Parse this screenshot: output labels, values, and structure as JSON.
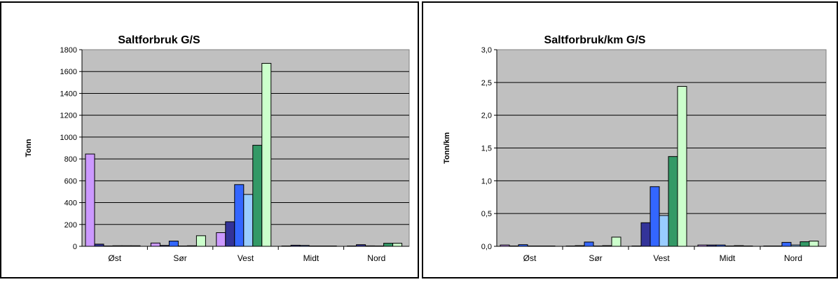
{
  "chart_data": [
    {
      "type": "bar",
      "title": "Saltforbruk G/S",
      "xlabel": "",
      "ylabel": "Tonn",
      "ylim": [
        0,
        1800
      ],
      "ytick_labels": [
        "0",
        "200",
        "400",
        "600",
        "800",
        "1000",
        "1200",
        "1400",
        "1600",
        "1800"
      ],
      "categories": [
        "Øst",
        "Sør",
        "Vest",
        "Midt",
        "Nord"
      ],
      "series_colors": [
        "#CC99FF",
        "#333399",
        "#3366FF",
        "#99CCFF",
        "#339966",
        "#CCFFCC"
      ],
      "grid": true,
      "series": [
        {
          "values": [
            845,
            30,
            125,
            3,
            3
          ]
        },
        {
          "values": [
            20,
            8,
            225,
            10,
            15
          ]
        },
        {
          "values": [
            3,
            48,
            565,
            8,
            4
          ]
        },
        {
          "values": [
            5,
            3,
            475,
            3,
            3
          ]
        },
        {
          "values": [
            5,
            5,
            925,
            3,
            28
          ]
        },
        {
          "values": [
            5,
            97,
            1675,
            3,
            28
          ]
        }
      ]
    },
    {
      "type": "bar",
      "title": "Saltforbruk/km G/S",
      "xlabel": "",
      "ylabel": "Tonn/km",
      "ylim": [
        0,
        3.0
      ],
      "ytick_labels": [
        "0,0",
        "0,5",
        "1,0",
        "1,5",
        "2,0",
        "2,5",
        "3,0"
      ],
      "categories": [
        "Øst",
        "Sør",
        "Vest",
        "Midt",
        "Nord"
      ],
      "series_colors": [
        "#CC99FF",
        "#333399",
        "#3366FF",
        "#99CCFF",
        "#339966",
        "#CCFFCC"
      ],
      "grid": true,
      "series": [
        {
          "values": [
            0.02,
            0.005,
            0.005,
            0.02,
            0.005
          ]
        },
        {
          "values": [
            0.005,
            0.01,
            0.36,
            0.02,
            0.005
          ]
        },
        {
          "values": [
            0.025,
            0.065,
            0.91,
            0.02,
            0.06
          ]
        },
        {
          "values": [
            0.005,
            0.005,
            0.47,
            0.005,
            0.02
          ]
        },
        {
          "values": [
            0.005,
            0.01,
            1.37,
            0.01,
            0.07
          ]
        },
        {
          "values": [
            0.005,
            0.14,
            2.44,
            0.005,
            0.08
          ]
        }
      ]
    }
  ]
}
